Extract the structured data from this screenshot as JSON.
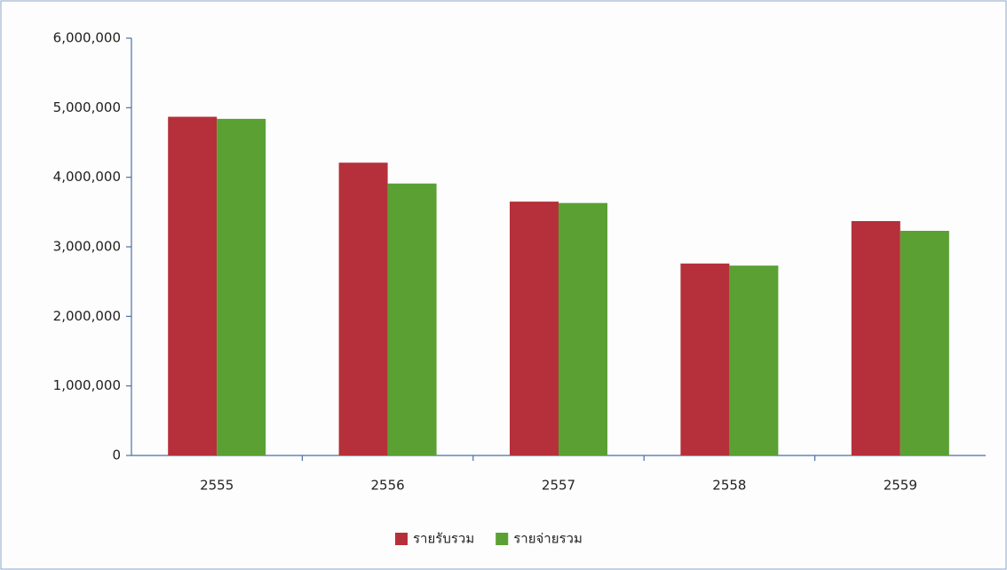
{
  "chart_data": {
    "type": "bar",
    "categories": [
      "2555",
      "2556",
      "2557",
      "2558",
      "2559"
    ],
    "series": [
      {
        "name": "รายรับรวม",
        "color": "#b5303a",
        "values": [
          4870000,
          4210000,
          3650000,
          2760000,
          3370000
        ]
      },
      {
        "name": "รายจ่ายรวม",
        "color": "#5aa033",
        "values": [
          4840000,
          3910000,
          3630000,
          2730000,
          3230000
        ]
      }
    ],
    "ylim": [
      0,
      6000000
    ],
    "yticks": [
      0,
      {
        "value": 1000000,
        "label": "1,000,000"
      },
      {
        "value": 2000000,
        "label": "2,000,000"
      },
      {
        "value": 3000000,
        "label": "3,000,000"
      },
      {
        "value": 4000000,
        "label": "4,000,000"
      },
      {
        "value": 5000000,
        "label": "5,000,000"
      },
      {
        "value": 6000000,
        "label": "6,000,000"
      }
    ],
    "legend": "bottom"
  }
}
